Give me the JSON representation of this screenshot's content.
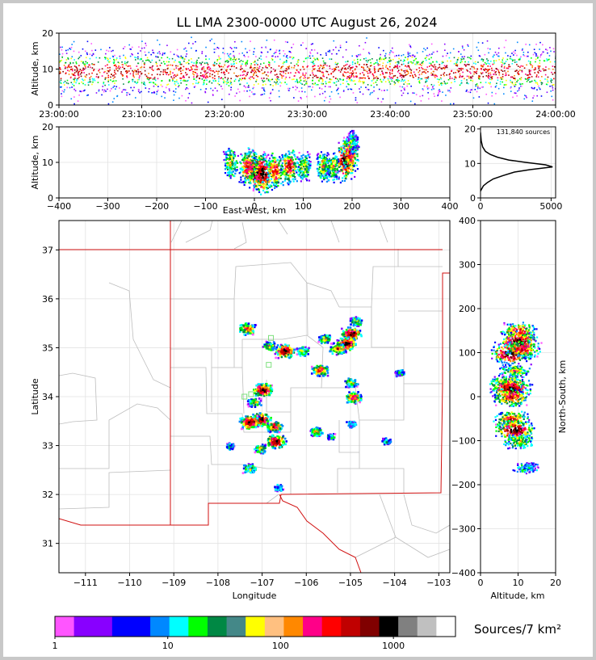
{
  "title": "LL LMA 2300-0000 UTC August 26, 2024",
  "colors": {
    "page_border": "#c8c8c8",
    "state_border": "#d01010",
    "county_line": "#bdbdbd",
    "grid": "#e2e2e2"
  },
  "chart_data": [
    {
      "id": "time_height",
      "type": "heatmap",
      "ylabel": "Altitude, km",
      "ylim": [
        0,
        20
      ],
      "yticks": [
        "0",
        "10",
        "20"
      ],
      "xticks": [
        "23:00:00",
        "23:10:00",
        "23:20:00",
        "23:30:00",
        "23:40:00",
        "23:50:00",
        "24:00:00"
      ]
    },
    {
      "id": "ew_height",
      "type": "heatmap",
      "xlabel": "East-West, km",
      "ylabel": "Altitude, km",
      "xlim": [
        -400,
        400
      ],
      "ylim": [
        0,
        20
      ],
      "xticks": [
        "−400",
        "−300",
        "−200",
        "−100",
        "0",
        "100",
        "200",
        "300",
        "400"
      ],
      "yticks": [
        "0",
        "10",
        "20"
      ],
      "cells": [
        {
          "x": -50,
          "z": 10,
          "d": 2
        },
        {
          "x": 0,
          "z": 8,
          "d": 4
        },
        {
          "x": -15,
          "z": 9,
          "d": 3
        },
        {
          "x": 15,
          "z": 7,
          "d": 4
        },
        {
          "x": 40,
          "z": 8,
          "d": 3
        },
        {
          "x": 70,
          "z": 9,
          "d": 3
        },
        {
          "x": 100,
          "z": 9,
          "d": 2
        },
        {
          "x": 140,
          "z": 9,
          "d": 2
        },
        {
          "x": 160,
          "z": 9,
          "d": 2
        },
        {
          "x": 185,
          "z": 11,
          "d": 4
        },
        {
          "x": 195,
          "z": 13,
          "d": 3
        },
        {
          "x": 200,
          "z": 16,
          "d": 1
        }
      ]
    },
    {
      "id": "altitude_histogram",
      "type": "line",
      "annotation": "131,840 sources",
      "xlim": [
        0,
        5000
      ],
      "ylim": [
        0,
        20
      ],
      "xticks": [
        "0",
        "5000"
      ],
      "yticks": [
        "0",
        "10",
        "20"
      ],
      "x": [
        0,
        200,
        500,
        900,
        1600,
        2400,
        3500,
        4500,
        5100,
        4600,
        3200,
        2000,
        1200,
        700,
        350,
        150,
        50,
        0
      ],
      "y": [
        2,
        3.5,
        4.5,
        5.5,
        6.5,
        7.5,
        8.2,
        8.7,
        9.0,
        9.6,
        10.3,
        11.0,
        11.8,
        12.6,
        13.5,
        14.8,
        16.5,
        19
      ]
    },
    {
      "id": "plan_view",
      "type": "heatmap",
      "xlabel": "Longitude",
      "ylabel": "Latitude",
      "xlim": [
        -111.6,
        -102.75
      ],
      "ylim": [
        30.4,
        37.6
      ],
      "xticks": [
        "−111",
        "−110",
        "−109",
        "−108",
        "−107",
        "−106",
        "−105",
        "−104",
        "−103"
      ],
      "yticks": [
        "31",
        "32",
        "33",
        "34",
        "35",
        "36",
        "37"
      ],
      "cells": [
        {
          "lon": -104.9,
          "lat": 35.55,
          "d": 2
        },
        {
          "lon": -105.0,
          "lat": 35.3,
          "d": 4
        },
        {
          "lon": -105.1,
          "lat": 35.1,
          "d": 4
        },
        {
          "lon": -105.3,
          "lat": 35.0,
          "d": 3
        },
        {
          "lon": -105.6,
          "lat": 35.2,
          "d": 2
        },
        {
          "lon": -106.1,
          "lat": 34.95,
          "d": 2
        },
        {
          "lon": -106.5,
          "lat": 34.95,
          "d": 4
        },
        {
          "lon": -106.85,
          "lat": 35.05,
          "d": 2
        },
        {
          "lon": -107.35,
          "lat": 35.4,
          "d": 3
        },
        {
          "lon": -105.7,
          "lat": 34.55,
          "d": 3
        },
        {
          "lon": -105.0,
          "lat": 34.3,
          "d": 2
        },
        {
          "lon": -104.95,
          "lat": 34.0,
          "d": 3
        },
        {
          "lon": -107.0,
          "lat": 34.15,
          "d": 4
        },
        {
          "lon": -107.2,
          "lat": 33.9,
          "d": 2
        },
        {
          "lon": -107.05,
          "lat": 33.55,
          "d": 4
        },
        {
          "lon": -107.3,
          "lat": 33.5,
          "d": 4
        },
        {
          "lon": -106.75,
          "lat": 33.4,
          "d": 3
        },
        {
          "lon": -106.7,
          "lat": 33.1,
          "d": 4
        },
        {
          "lon": -107.05,
          "lat": 32.95,
          "d": 2
        },
        {
          "lon": -107.3,
          "lat": 32.55,
          "d": 2
        },
        {
          "lon": -107.75,
          "lat": 33.0,
          "d": 1
        },
        {
          "lon": -105.8,
          "lat": 33.3,
          "d": 2
        },
        {
          "lon": -105.45,
          "lat": 33.2,
          "d": 1
        },
        {
          "lon": -105.0,
          "lat": 33.45,
          "d": 1
        },
        {
          "lon": -104.2,
          "lat": 33.1,
          "d": 1
        },
        {
          "lon": -103.9,
          "lat": 34.5,
          "d": 1
        },
        {
          "lon": -106.65,
          "lat": 32.15,
          "d": 1
        }
      ],
      "markers": [
        {
          "lon": -106.8,
          "lat": 35.2
        },
        {
          "lon": -106.85,
          "lat": 34.65
        },
        {
          "lon": -107.4,
          "lat": 34.0
        },
        {
          "lon": -107.25,
          "lat": 34.05
        }
      ]
    },
    {
      "id": "ns_height",
      "type": "heatmap",
      "xlabel": "Altitude, km",
      "ylabel": "North-South, km",
      "xlim": [
        0,
        20
      ],
      "ylim": [
        -400,
        400
      ],
      "xticks": [
        "0",
        "10",
        "20"
      ],
      "yticks": [
        "−400",
        "−300",
        "−200",
        "−100",
        "0",
        "100",
        "200",
        "300",
        "400"
      ],
      "cells": [
        {
          "z": 10,
          "y": 150,
          "d": 3
        },
        {
          "z": 10,
          "y": 125,
          "d": 4
        },
        {
          "z": 8,
          "y": 100,
          "d": 4
        },
        {
          "z": 11,
          "y": 110,
          "d": 3
        },
        {
          "z": 9,
          "y": 60,
          "d": 2
        },
        {
          "z": 7,
          "y": 30,
          "d": 3
        },
        {
          "z": 8,
          "y": 20,
          "d": 4
        },
        {
          "z": 8,
          "y": 0,
          "d": 3
        },
        {
          "z": 8,
          "y": -50,
          "d": 3
        },
        {
          "z": 9,
          "y": -75,
          "d": 4
        },
        {
          "z": 10,
          "y": -100,
          "d": 2
        },
        {
          "z": 12,
          "y": -160,
          "d": 1
        }
      ]
    }
  ],
  "colorbar": {
    "label": "Sources/7 km²",
    "ticks": [
      "1",
      "10",
      "100",
      "1000"
    ],
    "colors": [
      "#ff55ff",
      "#8800ff",
      "#8800ff",
      "#0000ff",
      "#0000ff",
      "#0088ff",
      "#00ffff",
      "#00ff00",
      "#008844",
      "#448888",
      "#ffff00",
      "#ffc080",
      "#ff8800",
      "#ff0088",
      "#ff0000",
      "#c00000",
      "#800000",
      "#000000",
      "#808080",
      "#c0c0c0",
      "#ffffff"
    ]
  }
}
